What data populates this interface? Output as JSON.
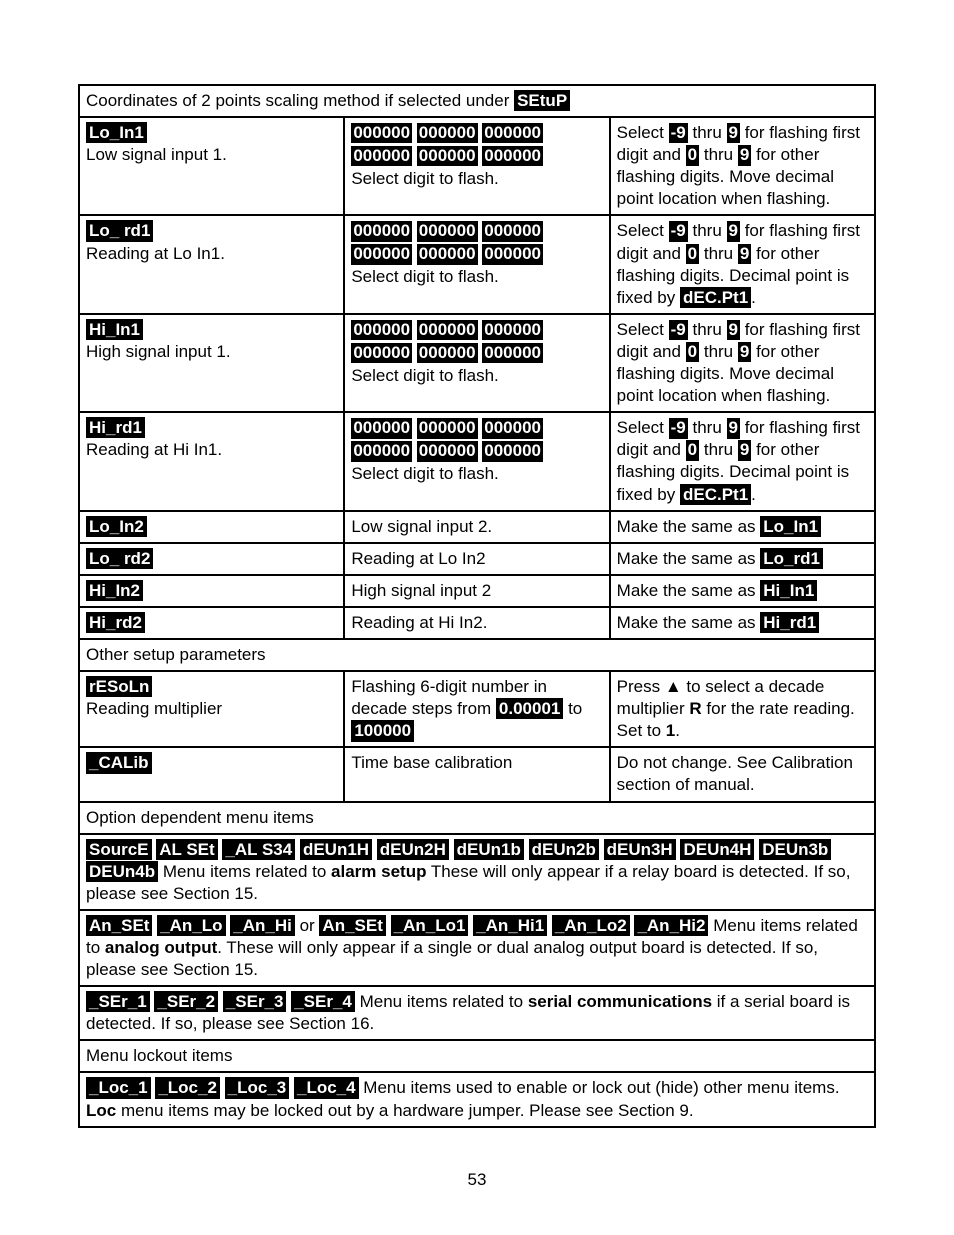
{
  "section1_header_pre": "Coordinates of 2 points scaling method if selected under ",
  "section1_header_tag": "SEtuP",
  "rows1": [
    {
      "tag": "Lo_In1",
      "sub": "Low signal input 1.",
      "mid_digits": true,
      "mid_text": "Select digit to flash.",
      "right_pre": "Select ",
      "right_r1": "-9",
      "right_mid1": " thru ",
      "right_r2": "9",
      "right_mid2": " for flashing first digit and ",
      "right_r3": "0",
      "right_mid3": " thru ",
      "right_r4": "9",
      "right_post": " for other flashing digits. Move decimal point location when flashing."
    },
    {
      "tag": "Lo_ rd1",
      "sub": "Reading at Lo In1.",
      "mid_digits": true,
      "mid_text": "Select digit to flash.",
      "right_pre": "Select ",
      "right_r1": "-9",
      "right_mid1": " thru ",
      "right_r2": "9",
      "right_mid2": " for flashing first digit and ",
      "right_r3": "0",
      "right_mid3": " thru ",
      "right_r4": "9",
      "right_post": " for other flashing digits. Decimal point is fixed by ",
      "right_tag": "dEC.Pt1",
      "right_tail": "."
    },
    {
      "tag": "Hi_In1",
      "sub": "High signal input 1.",
      "mid_digits": true,
      "mid_text": "Select digit to flash.",
      "right_pre": "Select ",
      "right_r1": "-9",
      "right_mid1": " thru ",
      "right_r2": "9",
      "right_mid2": " for flashing first digit and ",
      "right_r3": "0",
      "right_mid3": " thru ",
      "right_r4": "9",
      "right_post": " for other flashing digits. Move decimal point location when flashing."
    },
    {
      "tag": "Hi_rd1",
      "sub": "Reading at Hi In1.",
      "mid_digits": true,
      "mid_text": "Select digit to flash.",
      "right_pre": "Select ",
      "right_r1": "-9",
      "right_mid1": " thru ",
      "right_r2": "9",
      "right_mid2": " for flashing first digit and ",
      "right_r3": "0",
      "right_mid3": " thru ",
      "right_r4": "9",
      "right_post": " for other flashing digits. Decimal point is fixed by ",
      "right_tag": "dEC.Pt1",
      "right_tail": "."
    }
  ],
  "rows2": [
    {
      "tag": "Lo_In2",
      "mid": "Low signal input 2.",
      "right_pre": "Make the same as ",
      "right_tag": "Lo_In1"
    },
    {
      "tag": "Lo_ rd2",
      "mid": "Reading at Lo In2",
      "right_pre": "Make the same as ",
      "right_tag": "Lo_rd1"
    },
    {
      "tag": "Hi_In2",
      "mid": "High signal input 2",
      "right_pre": "Make the same as ",
      "right_tag": "Hi_In1"
    },
    {
      "tag": "Hi_rd2",
      "mid": "Reading at Hi In2.",
      "right_pre": "Make the same as ",
      "right_tag": "Hi_rd1"
    }
  ],
  "section2_header": "Other setup parameters",
  "resoln": {
    "tag": "rESoLn",
    "sub": "Reading multiplier",
    "mid_pre": "Flashing 6-digit number in decade steps from ",
    "mid_t1": "0.00001",
    "mid_mid": " to ",
    "mid_t2": "100000",
    "right_pre": "Press ▲ to select a decade multiplier ",
    "right_r": "R",
    "right_mid": " for the rate reading. Set to ",
    "right_one": "1",
    "right_tail": "."
  },
  "calib": {
    "tag": "_CALib",
    "mid": "Time base calibration",
    "right": "Do not change. See Calibration section of manual."
  },
  "section3_header": "Option dependent menu items",
  "alarm": {
    "tags": [
      "SourcE",
      "AL SEt",
      "_AL S34",
      "dEUn1H",
      "dEUn2H",
      "dEUn1b",
      "dEUn2b",
      "dEUn3H",
      "DEUn4H",
      "DEUn3b",
      "DEUn4b"
    ],
    "text_pre": "   Menu items related to ",
    "bold": "alarm setup",
    "text_post": " These will only appear if a relay board is detected. If so, please see Section 15."
  },
  "analog": {
    "tagsA": [
      "An_SEt",
      "_An_Lo",
      "_An_Hi"
    ],
    "or": " or ",
    "tagsB": [
      "An_SEt",
      "_An_Lo1",
      "_An_Hi1",
      "_An_Lo2",
      "_An_Hi2"
    ],
    "text_pre": "   Menu items related to ",
    "bold": "analog output",
    "text_post": ". These will only appear if a single or dual analog output board is detected. If so, please see Section 15."
  },
  "serial": {
    "tags": [
      "_SEr_1",
      "_SEr_2",
      "_SEr_3",
      "_SEr_4"
    ],
    "text_pre": "   Menu items related to ",
    "bold": "serial communications",
    "text_post": " if a serial board is detected. If so, please see Section 16."
  },
  "section4_header": "Menu lockout items",
  "lockout": {
    "tags": [
      "_Loc_1",
      "_Loc_2",
      "_Loc_3",
      "_Loc_4"
    ],
    "text_pre": "   Menu items used to enable or lock out (hide) other menu items. ",
    "bold": "Loc",
    "text_post": " menu items may be locked out by a hardware jumper. Please see Section 9."
  },
  "d1": "000000",
  "d2": "000000",
  "d3": "000000",
  "d4": "000000",
  "d5": "000000",
  "d6": "000000",
  "page_number": "53"
}
